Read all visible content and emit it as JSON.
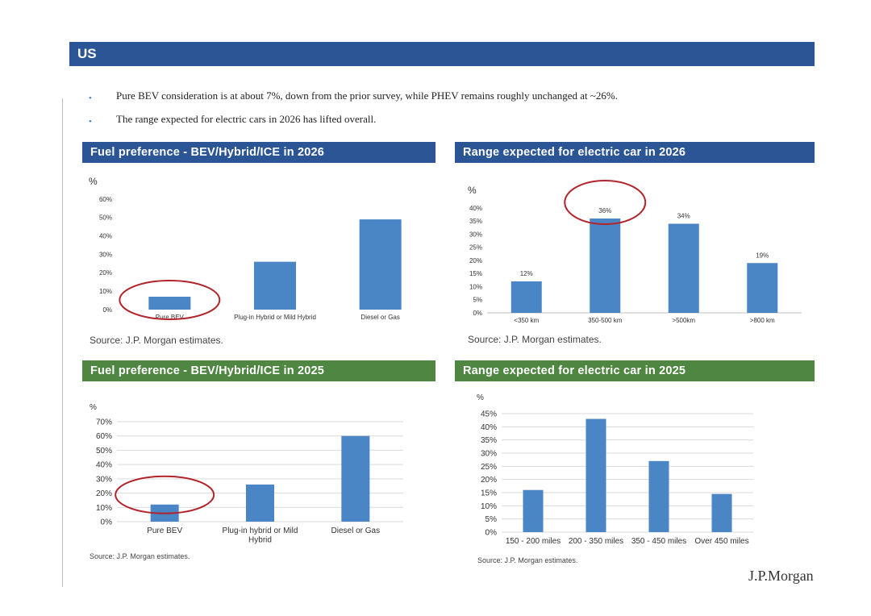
{
  "banner": {
    "title": "US"
  },
  "bullets": [
    "Pure BEV consideration is at about 7%, down from the prior survey, while PHEV remains roughly unchanged at ~26%.",
    "The range expected for electric cars in 2026 has lifted overall."
  ],
  "bullet_glyph": "•",
  "logo": "J.P.Morgan",
  "colors": {
    "bar": "#4a86c5",
    "circle": "#b3232a",
    "header_blue": "#2c5595",
    "header_green": "#4e8642"
  },
  "panels": [
    {
      "header": "Fuel preference - BEV/Hybrid/ICE in 2026",
      "source": "Source: J.P. Morgan estimates."
    },
    {
      "header": "Range expected for electric car in 2026",
      "source": "Source: J.P. Morgan estimates."
    },
    {
      "header": "Fuel preference - BEV/Hybrid/ICE in 2025",
      "source": "Source: J.P. Morgan estimates."
    },
    {
      "header": "Range expected for electric car in 2025",
      "source": "Source: J.P. Morgan estimates."
    }
  ],
  "chart_data": [
    {
      "type": "bar",
      "ylabel": "%",
      "categories": [
        "Pure BEV",
        "Plug-in Hybrid or Mild Hybrid",
        "Diesel or Gas"
      ],
      "values": [
        7,
        26,
        49
      ],
      "yticks": [
        "0%",
        "10%",
        "20%",
        "30%",
        "40%",
        "50%",
        "60%"
      ],
      "ylim": [
        0,
        60
      ],
      "grid": false,
      "highlight": "Pure BEV"
    },
    {
      "type": "bar",
      "ylabel": "%",
      "categories": [
        "<350 km",
        "350-500 km",
        ">500km",
        ">800 km"
      ],
      "values": [
        12,
        36,
        34,
        19
      ],
      "data_labels": [
        "12%",
        "36%",
        "34%",
        "19%"
      ],
      "yticks": [
        "0%",
        "5%",
        "10%",
        "15%",
        "20%",
        "25%",
        "30%",
        "35%",
        "40%"
      ],
      "ylim": [
        0,
        40
      ],
      "grid": false,
      "highlight": "350-500 km"
    },
    {
      "type": "bar",
      "ylabel": "%",
      "categories": [
        "Pure BEV",
        "Plug-in hybrid or Mild Hybrid",
        "Diesel or Gas"
      ],
      "values": [
        12,
        26,
        60
      ],
      "yticks": [
        "0%",
        "10%",
        "20%",
        "30%",
        "40%",
        "50%",
        "60%",
        "70%"
      ],
      "ylim": [
        0,
        70
      ],
      "grid": true,
      "highlight": "Pure BEV"
    },
    {
      "type": "bar",
      "ylabel": "%",
      "categories": [
        "150 - 200 miles",
        "200 - 350 miles",
        "350 - 450 miles",
        "Over 450 miles"
      ],
      "values": [
        16,
        43,
        27,
        14.5
      ],
      "yticks": [
        "0%",
        "5%",
        "10%",
        "15%",
        "20%",
        "25%",
        "30%",
        "35%",
        "40%",
        "45%"
      ],
      "ylim": [
        0,
        45
      ],
      "grid": true
    }
  ]
}
